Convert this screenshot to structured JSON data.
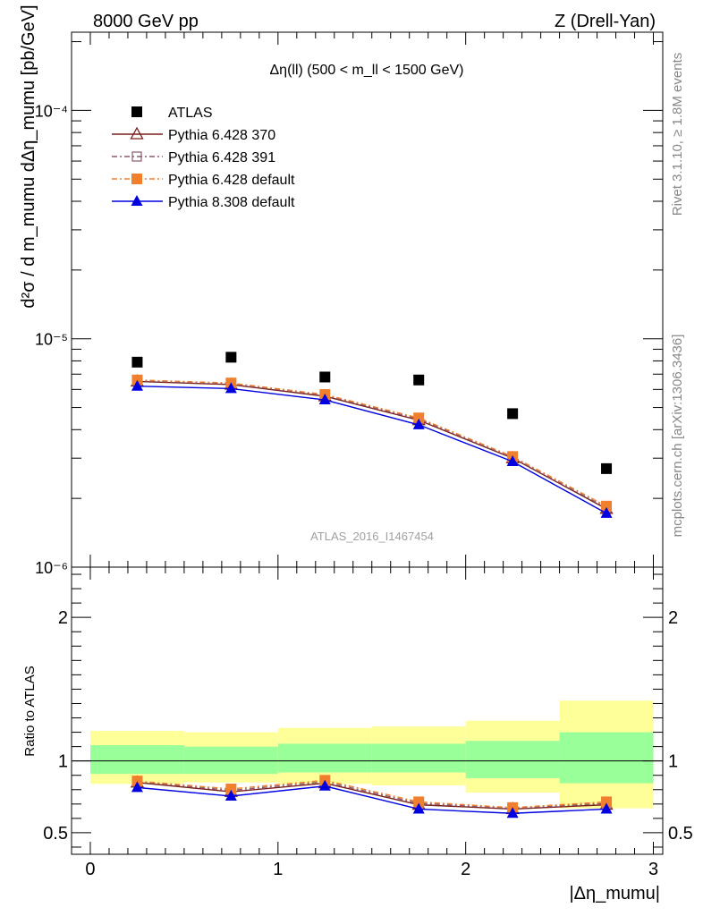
{
  "header": {
    "left": "8000 GeV pp",
    "right": "Z (Drell-Yan)"
  },
  "side": {
    "rivet": "Rivet 3.1.10, ≥ 1.8M events",
    "mcplots": "mcplots.cern.ch [arXiv:1306.3436]"
  },
  "chart_data": {
    "type": "scatter",
    "title": "Δη(ll) (500 < m_ll < 1500 GeV)",
    "analysis_label": "ATLAS_2016_I1467454",
    "xlabel": "|Δη_mumu|",
    "ylabel": "d²σ / d m_mumu dΔη_mumu [pb/GeV]",
    "ratio_ylabel": "Ratio to ATLAS",
    "xlim": [
      -0.1,
      3.05
    ],
    "ylim": [
      1e-06,
      0.00022
    ],
    "yscale": "log",
    "ratio_ylim": [
      0.35,
      2.35
    ],
    "xticks": [
      0,
      1,
      2,
      3
    ],
    "xtick_labels": [
      "0",
      "1",
      "2",
      "3"
    ],
    "yticks": [
      1e-06,
      1e-05,
      0.0001
    ],
    "ytick_labels": [
      "10⁻⁶",
      "10⁻⁵",
      "10⁻⁴"
    ],
    "ratio_yticks": [
      0.5,
      1,
      2
    ],
    "ratio_ytick_labels": [
      "0.5",
      "1",
      "2"
    ],
    "legend_position": "top-left",
    "bin_edges": [
      0,
      0.5,
      1,
      1.5,
      2,
      2.5,
      3
    ],
    "x": [
      0.25,
      0.75,
      1.25,
      1.75,
      2.25,
      2.75
    ],
    "series": [
      {
        "name": "ATLAS",
        "color": "#000000",
        "marker": "square",
        "values": [
          7.9e-06,
          8.3e-06,
          6.8e-06,
          6.6e-06,
          4.7e-06,
          2.7e-06
        ]
      },
      {
        "name": "Pythia 6.428 370",
        "color": "#7b1f1f",
        "marker": "triangle-open",
        "dash": "",
        "values": [
          6.5e-06,
          6.3e-06,
          5.6e-06,
          4.4e-06,
          3e-06,
          1.8e-06
        ],
        "ratio": [
          0.85,
          0.785,
          0.845,
          0.695,
          0.665,
          0.695
        ]
      },
      {
        "name": "Pythia 6.428 391",
        "color": "#8b5a6a",
        "marker": "square-open",
        "dash": "6,3,2,3",
        "values": [
          6.55e-06,
          6.35e-06,
          5.65e-06,
          4.45e-06,
          3.02e-06,
          1.82e-06
        ],
        "ratio": [
          0.855,
          0.795,
          0.855,
          0.705,
          0.67,
          0.705
        ]
      },
      {
        "name": "Pythia 6.428 default",
        "color": "#f07f2e",
        "marker": "square",
        "dash": "6,3,2,3",
        "values": [
          6.6e-06,
          6.4e-06,
          5.7e-06,
          4.5e-06,
          3.05e-06,
          1.85e-06
        ],
        "ratio": [
          0.86,
          0.805,
          0.865,
          0.715,
          0.675,
          0.715
        ]
      },
      {
        "name": "Pythia 8.308 default",
        "color": "#0000e0",
        "marker": "triangle",
        "dash": "",
        "values": [
          6.2e-06,
          6.05e-06,
          5.4e-06,
          4.2e-06,
          2.9e-06,
          1.72e-06
        ],
        "ratio": [
          0.815,
          0.755,
          0.825,
          0.665,
          0.635,
          0.665
        ]
      }
    ],
    "uncertainty_bands": {
      "outer_color": "#ffff99",
      "inner_color": "#99ff99",
      "inner": [
        [
          0.91,
          1.11
        ],
        [
          0.91,
          1.1
        ],
        [
          0.92,
          1.12
        ],
        [
          0.92,
          1.12
        ],
        [
          0.88,
          1.14
        ],
        [
          0.845,
          1.2
        ]
      ],
      "outer": [
        [
          0.84,
          1.21
        ],
        [
          0.85,
          1.2
        ],
        [
          0.84,
          1.23
        ],
        [
          0.83,
          1.24
        ],
        [
          0.78,
          1.28
        ],
        [
          0.67,
          1.42
        ]
      ]
    }
  }
}
